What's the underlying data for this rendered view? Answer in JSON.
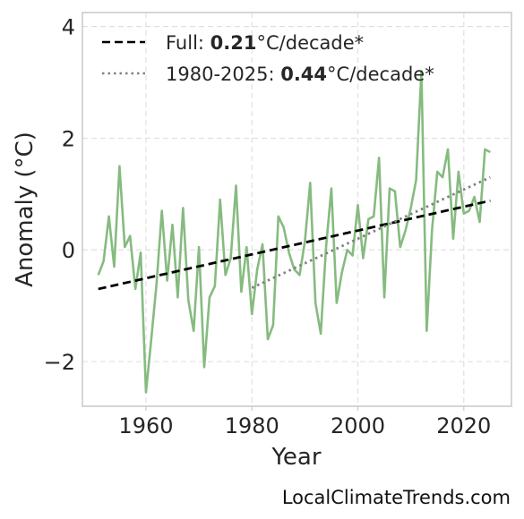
{
  "chart_data": {
    "type": "line",
    "xlabel": "Year",
    "ylabel": "Anomaly (°C)",
    "xlim": [
      1948,
      2029
    ],
    "ylim": [
      -2.8,
      4.25
    ],
    "xticks": [
      1960,
      1980,
      2000,
      2020
    ],
    "yticks": [
      -2,
      0,
      2,
      4
    ],
    "ytick_labels": [
      "−2",
      "0",
      "2",
      "4"
    ],
    "grid": true,
    "legend_position": "top-left",
    "series": [
      {
        "style": "solid",
        "color": "#86bb80",
        "x": [
          1951,
          1952,
          1953,
          1954,
          1955,
          1956,
          1957,
          1958,
          1959,
          1960,
          1961,
          1962,
          1963,
          1964,
          1965,
          1966,
          1967,
          1968,
          1969,
          1970,
          1971,
          1972,
          1973,
          1974,
          1975,
          1976,
          1977,
          1978,
          1979,
          1980,
          1981,
          1982,
          1983,
          1984,
          1985,
          1986,
          1987,
          1988,
          1989,
          1990,
          1991,
          1992,
          1993,
          1994,
          1995,
          1996,
          1997,
          1998,
          1999,
          2000,
          2001,
          2002,
          2003,
          2004,
          2005,
          2006,
          2007,
          2008,
          2009,
          2010,
          2011,
          2012,
          2013,
          2014,
          2015,
          2016,
          2017,
          2018,
          2019,
          2020,
          2021,
          2022,
          2023,
          2024,
          2025
        ],
        "y": [
          -0.45,
          -0.2,
          0.6,
          -0.3,
          1.5,
          0.05,
          0.25,
          -0.7,
          -0.05,
          -2.55,
          -1.6,
          -0.6,
          0.7,
          -0.55,
          0.45,
          -0.85,
          0.75,
          -0.9,
          -1.45,
          0.05,
          -2.1,
          -0.85,
          -0.65,
          0.9,
          -0.45,
          -0.15,
          1.15,
          -0.75,
          0.05,
          -1.15,
          -0.35,
          0.1,
          -1.6,
          -1.35,
          0.6,
          0.4,
          -0.05,
          -0.35,
          -0.45,
          0.15,
          1.2,
          -0.95,
          -1.5,
          0.05,
          1.1,
          -0.95,
          -0.4,
          0.0,
          -0.1,
          0.8,
          -0.15,
          0.55,
          0.6,
          1.65,
          -0.85,
          1.1,
          1.05,
          0.05,
          0.35,
          0.75,
          1.25,
          3.2,
          -1.45,
          0.35,
          1.4,
          1.3,
          1.8,
          0.2,
          1.4,
          0.65,
          0.7,
          0.95,
          0.5,
          1.8,
          1.75
        ]
      },
      {
        "name": "Full",
        "style": "dashed",
        "color": "#000000",
        "x": [
          1951,
          2025
        ],
        "y": [
          -0.7,
          0.88
        ]
      },
      {
        "name": "1980-2025",
        "style": "dotted",
        "color": "#808080",
        "x": [
          1980,
          2025
        ],
        "y": [
          -0.68,
          1.3
        ]
      }
    ],
    "legend": [
      {
        "prefix": "Full: ",
        "value": "0.21",
        "suffix": "°C/decade*",
        "color": "#000000",
        "style": "dashed"
      },
      {
        "prefix": "1980-2025: ",
        "value": "0.44",
        "suffix": "°C/decade*",
        "color": "#808080",
        "style": "dotted"
      }
    ]
  },
  "watermark": "LocalClimateTrends.com"
}
